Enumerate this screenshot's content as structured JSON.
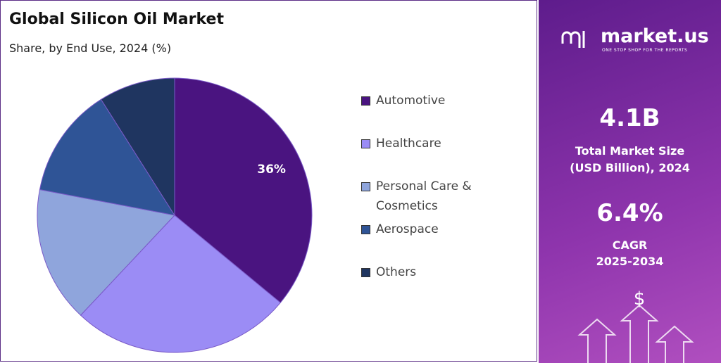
{
  "chart_data": {
    "type": "pie",
    "title": "Global Silicon Oil Market",
    "subtitle": "Share, by End Use, 2024 (%)",
    "categories": [
      "Automotive",
      "Healthcare",
      "Personal Care & Cosmetics",
      "Aerospace",
      "Others"
    ],
    "values": [
      36,
      26,
      16,
      13,
      9
    ],
    "value_labels": [
      "36%",
      null,
      null,
      null,
      null
    ],
    "colors": [
      "#4a1480",
      "#9b8cf5",
      "#8fa5dc",
      "#2f5496",
      "#1f3560"
    ]
  },
  "sidebar": {
    "brand": "market.us",
    "tagline": "ONE STOP SHOP FOR THE REPORTS",
    "stats": [
      {
        "value": "4.1B",
        "label": [
          "Total Market Size",
          "(USD Billion), 2024"
        ]
      },
      {
        "value": "6.4%",
        "label": [
          "CAGR",
          "2025-2034"
        ]
      }
    ]
  }
}
